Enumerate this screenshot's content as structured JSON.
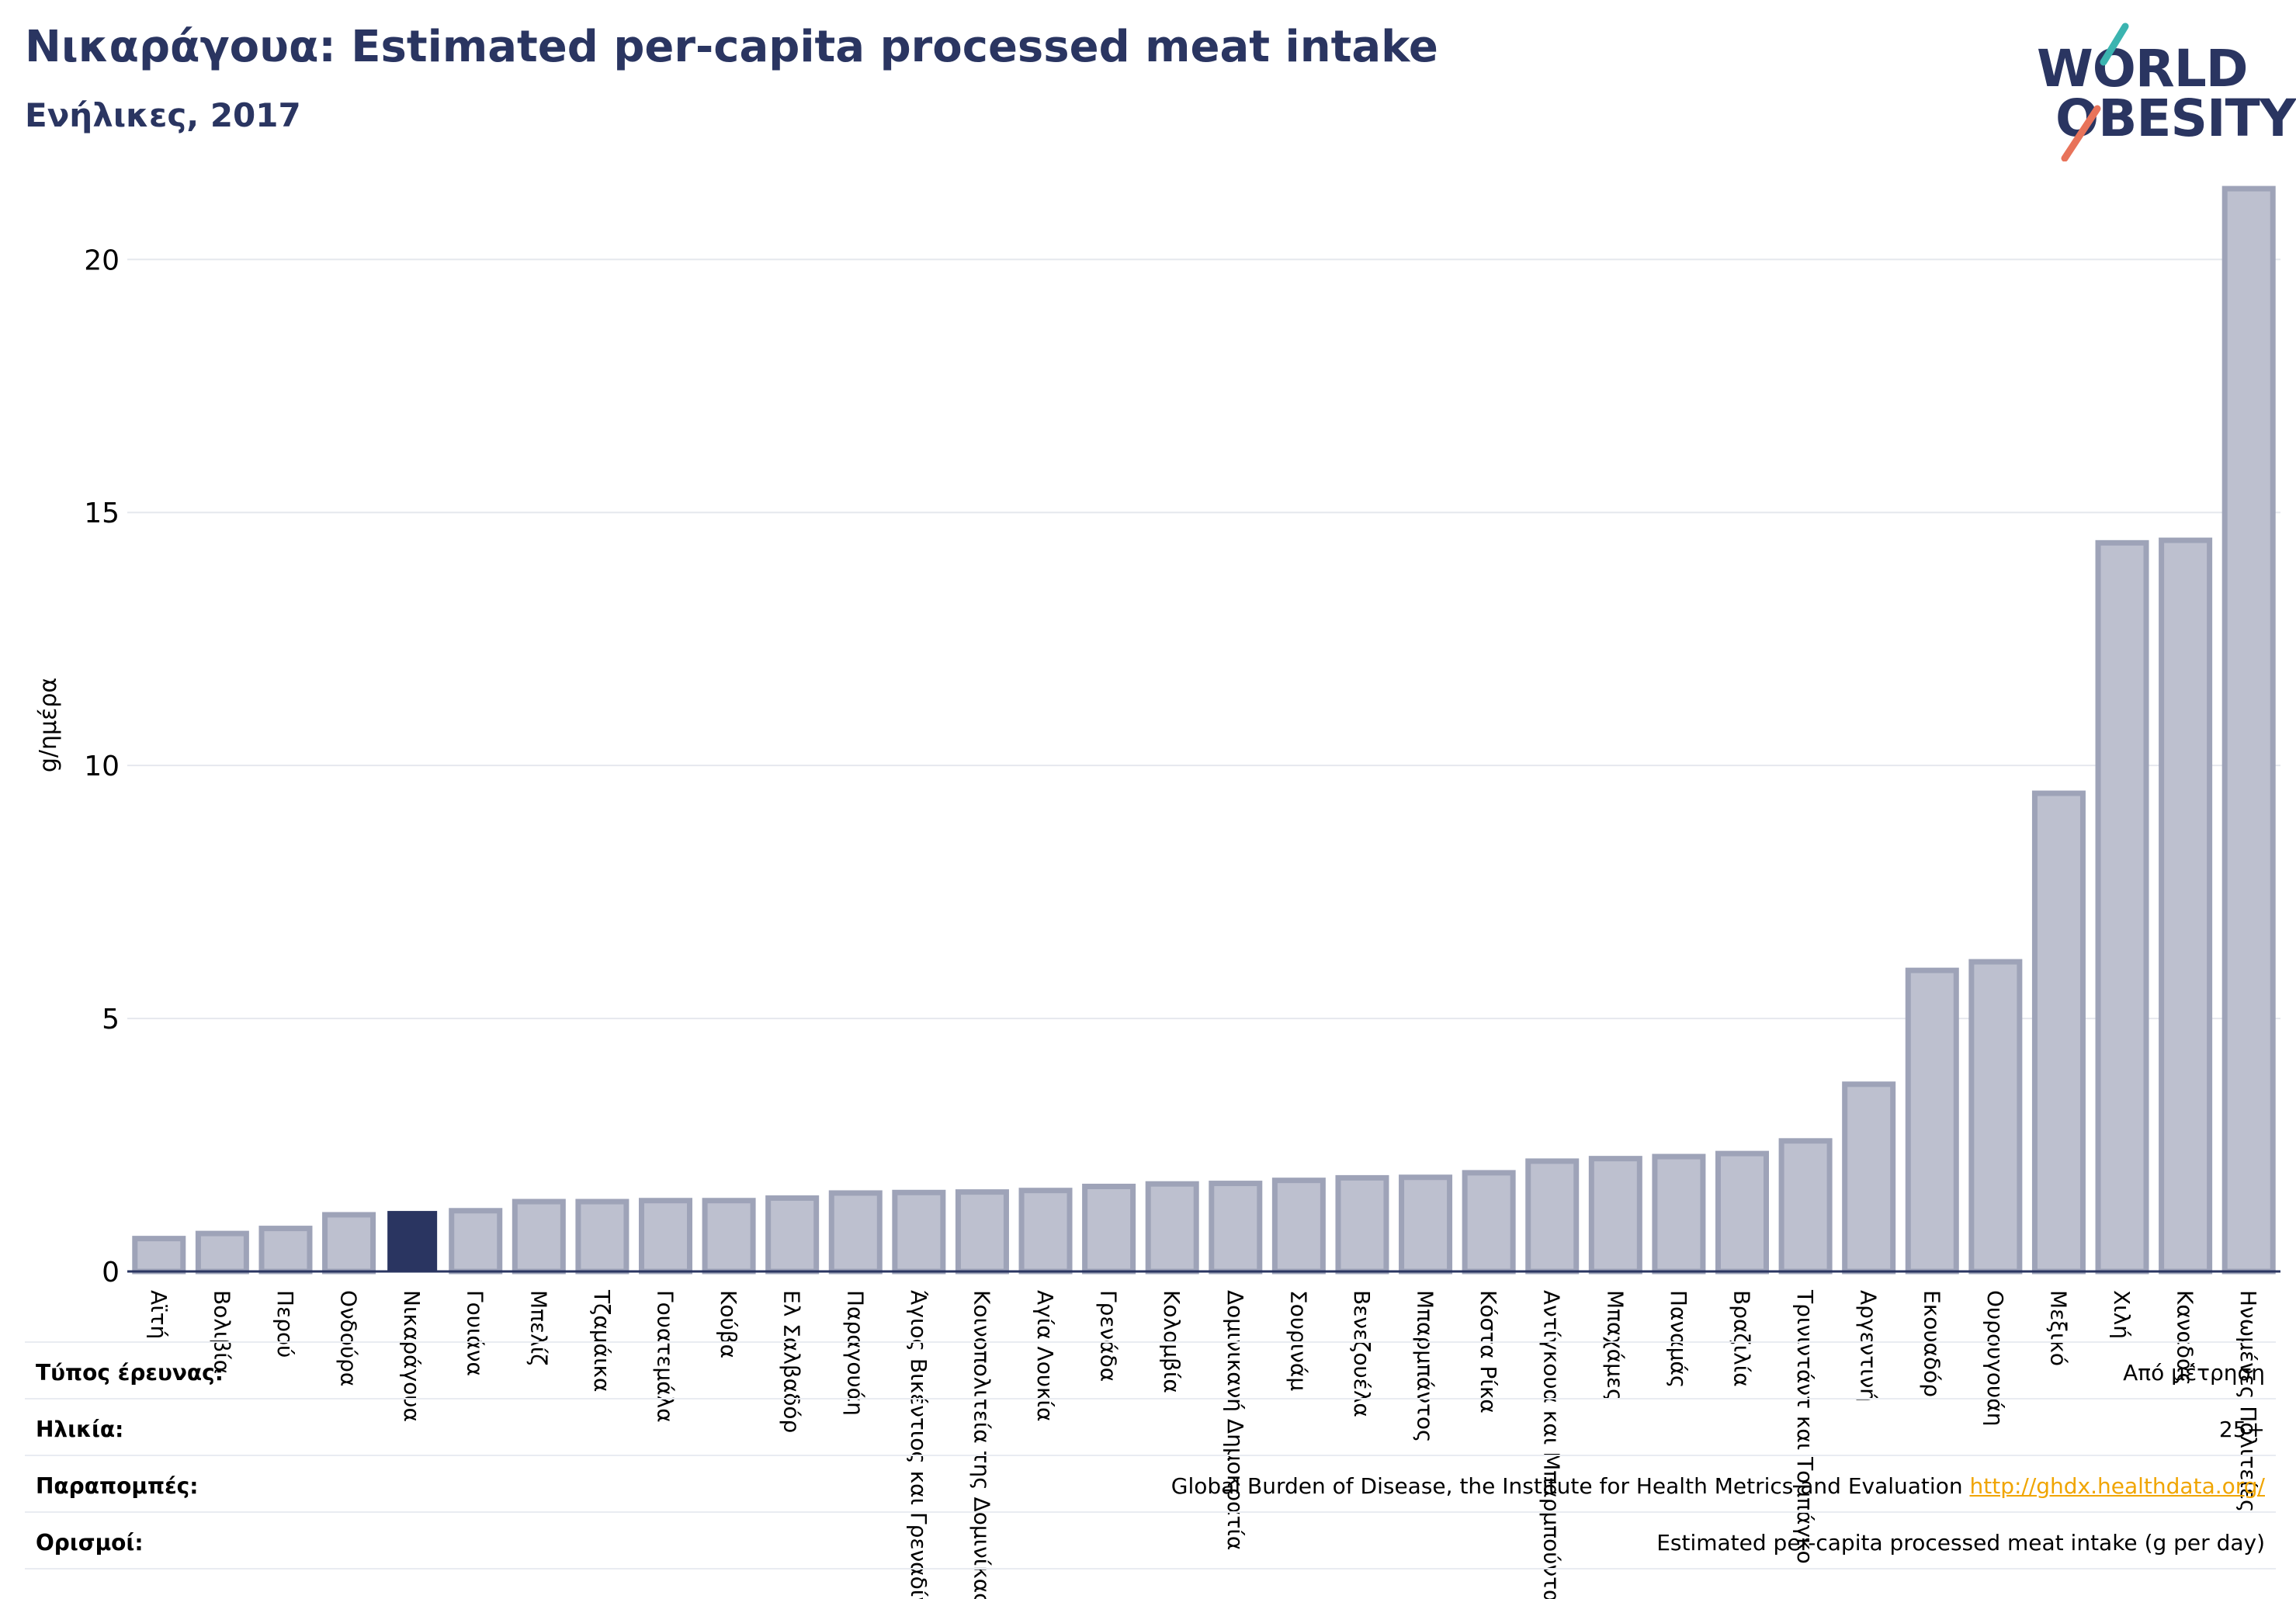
{
  "header": {
    "title": "Νικαράγουα: Estimated per-capita processed meat intake",
    "subtitle": "Ενήλικες, 2017"
  },
  "logo": {
    "line1": "WORLD",
    "line2": "OBESITY",
    "accent_colors": [
      "#3bb4b0",
      "#e8735a"
    ]
  },
  "colors": {
    "highlight": "#2a3561",
    "bar_fill": "#bdc0cf",
    "bar_stroke": "#9ea3b8",
    "axis": "#2a3561",
    "grid": "#e6e8ee"
  },
  "chart_data": {
    "type": "bar",
    "title": "",
    "xlabel": "",
    "ylabel": "g/ημέρα",
    "ylim": [
      0,
      21.6
    ],
    "yticks": [
      0,
      5,
      10,
      15,
      20
    ],
    "grid": true,
    "highlight": "Νικαράγουα",
    "categories": [
      "Αϊτή",
      "Βολιβία",
      "Περού",
      "Ονδούρα",
      "Νικαράγουα",
      "Γουιάνα",
      "Μπελίζ",
      "Τζαμάικα",
      "Γουατεμάλα",
      "Κούβα",
      "Ελ Σαλβαδόρ",
      "Παραγουάη",
      "Άγιος Βικέντιος και Γρεναδίνες",
      "Κοινοπολιτεία της Δομινίκας",
      "Αγία Λουκία",
      "Γρενάδα",
      "Κολομβία",
      "Δομινικανή Δημοκρατία",
      "Σουρινάμ",
      "Βενεζουέλα",
      "Μπαρμπάντος",
      "Κόστα Ρίκα",
      "Αντίγκουα και Μπαρμπούντα",
      "Μπαχάμες",
      "Παναμάς",
      "Βραζιλία",
      "Τρινιντάντ και Τομπάγκο",
      "Αργεντινή",
      "Εκουαδόρ",
      "Ουρουγουάη",
      "Μεξικό",
      "Χιλή",
      "Καναδάς",
      "Ηνωμένες Πολιτείες"
    ],
    "values": [
      0.65,
      0.75,
      0.85,
      1.12,
      1.18,
      1.2,
      1.38,
      1.38,
      1.4,
      1.4,
      1.45,
      1.55,
      1.56,
      1.57,
      1.6,
      1.68,
      1.73,
      1.74,
      1.8,
      1.85,
      1.86,
      1.95,
      2.18,
      2.23,
      2.27,
      2.33,
      2.58,
      3.7,
      5.95,
      6.12,
      9.45,
      14.4,
      14.45,
      21.4
    ]
  },
  "meta": {
    "rows": [
      {
        "label": "Τύπος έρευνας:",
        "value": "Από μέτρηση"
      },
      {
        "label": "Ηλικία:",
        "value": "25+"
      },
      {
        "label": "Παραπομπές:",
        "value": "Global Burden of Disease, the Institute for Health Metrics and Evaluation",
        "link": "http://ghdx.healthdata.org/"
      },
      {
        "label": "Ορισμοί:",
        "value": "Estimated per-capita processed meat intake (g per day)"
      }
    ]
  }
}
